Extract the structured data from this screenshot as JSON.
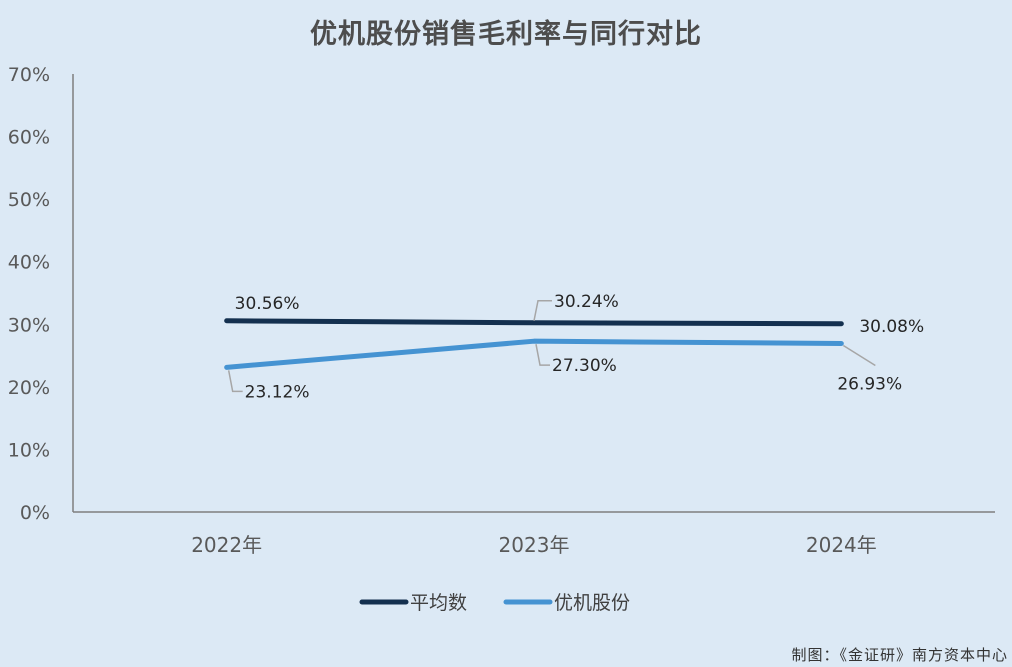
{
  "chart_data": {
    "type": "line",
    "title": "优机股份销售毛利率与同行对比",
    "categories": [
      "2022年",
      "2023年",
      "2024年"
    ],
    "series": [
      {
        "name": "平均数",
        "values": [
          30.56,
          30.24,
          30.08
        ],
        "labels": [
          "30.56%",
          "30.24%",
          "30.08%"
        ],
        "color": "#14304f"
      },
      {
        "name": "优机股份",
        "values": [
          23.12,
          27.3,
          26.93
        ],
        "labels": [
          "23.12%",
          "27.30%",
          "26.93%"
        ],
        "color": "#4593d2"
      }
    ],
    "ylim": [
      0,
      70
    ],
    "yticks": [
      "0%",
      "10%",
      "20%",
      "30%",
      "40%",
      "50%",
      "60%",
      "70%"
    ],
    "grid": false,
    "legend": "bottom"
  },
  "colors": {
    "background": "#dce9f5",
    "axis": "#7f7f7f",
    "leader": "#a6a6a6"
  },
  "credit": "制图：《金证研》南方资本中心"
}
